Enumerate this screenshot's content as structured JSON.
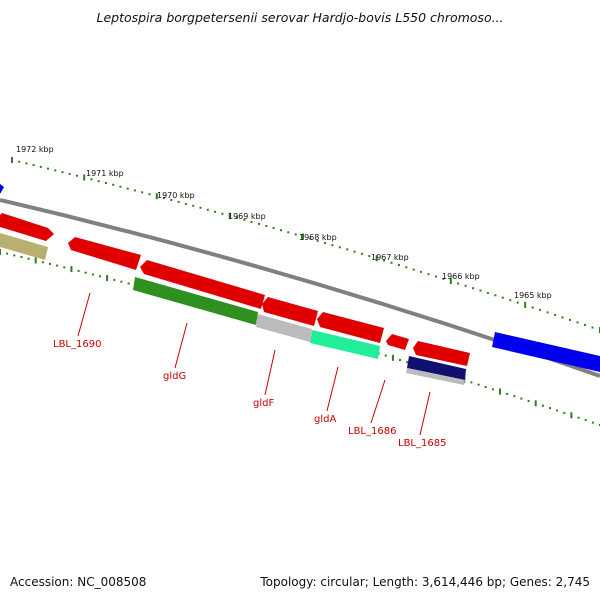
{
  "title": "Leptospira borgpetersenii serovar Hardjo-bovis L550 chromoso...",
  "footer": {
    "accession": "Accession: NC_008508",
    "topology": "Topology: circular; Length: 3,614,446 bp; Genes: 2,745"
  },
  "colors": {
    "backbone": "#808080",
    "ticks": "#2e7d1f",
    "label_lines": "#cc0000",
    "gene_red": "#e00000",
    "gene_blue": "#0000ee",
    "gene_green": "#2f8f1f",
    "gene_teal": "#22ee99",
    "gene_olive": "#b8b070",
    "gene_gray": "#bbbbbb",
    "gene_navy": "#101070"
  },
  "scale_labels": [
    "1972 kbp",
    "1971 kbp",
    "1970 kbp",
    "1969 kbp",
    "1968 kbp",
    "1967 kbp",
    "1966 kbp",
    "1965 kbp"
  ],
  "gene_labels": [
    "LBL_1690",
    "gldG",
    "gldF",
    "gldA",
    "LBL_1686",
    "LBL_1685"
  ]
}
